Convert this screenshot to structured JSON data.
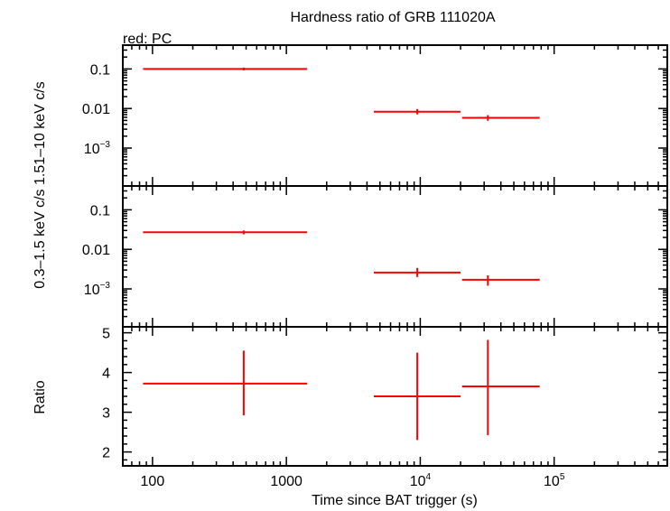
{
  "chart_data": {
    "type": "scatter",
    "title": "Hardness ratio of GRB 111020A",
    "subtitle": "red: PC",
    "xlabel": "Time since BAT trigger (s)",
    "x_scale": "log",
    "xlim": [
      60,
      700000
    ],
    "x_ticks": [
      {
        "v": 100,
        "base": "100",
        "exp": ""
      },
      {
        "v": 1000,
        "base": "1000",
        "exp": ""
      },
      {
        "v": 10000,
        "base": "10",
        "exp": "4"
      },
      {
        "v": 100000,
        "base": "10",
        "exp": "5"
      }
    ],
    "color": "#ff0000",
    "panels": [
      {
        "name": "hard",
        "ylabel": "1.51–10 keV c/s",
        "y_scale": "log",
        "ylim": [
          0.00011,
          0.4
        ],
        "y_ticks": [
          {
            "v": 0.1,
            "base": "0.1",
            "exp": ""
          },
          {
            "v": 0.01,
            "base": "0.01",
            "exp": ""
          },
          {
            "v": 0.001,
            "base": "10",
            "exp": "−3"
          }
        ],
        "points": [
          {
            "x": 480,
            "xlo": 85,
            "xhi": 1430,
            "y": 0.1,
            "ylo": 0.092,
            "yhi": 0.108
          },
          {
            "x": 9500,
            "xlo": 4500,
            "xhi": 20000,
            "y": 0.0083,
            "ylo": 0.0071,
            "yhi": 0.0097
          },
          {
            "x": 32000,
            "xlo": 20500,
            "xhi": 78000,
            "y": 0.0058,
            "ylo": 0.0049,
            "yhi": 0.0068
          }
        ]
      },
      {
        "name": "soft",
        "ylabel": "0.3–1.5 keV c/s",
        "y_scale": "log",
        "ylim": [
          0.00011,
          0.4
        ],
        "y_ticks": [
          {
            "v": 0.1,
            "base": "0.1",
            "exp": ""
          },
          {
            "v": 0.01,
            "base": "0.01",
            "exp": ""
          },
          {
            "v": 0.001,
            "base": "10",
            "exp": "−3"
          }
        ],
        "points": [
          {
            "x": 480,
            "xlo": 85,
            "xhi": 1430,
            "y": 0.027,
            "ylo": 0.024,
            "yhi": 0.03
          },
          {
            "x": 9500,
            "xlo": 4500,
            "xhi": 20000,
            "y": 0.0026,
            "ylo": 0.002,
            "yhi": 0.0034
          },
          {
            "x": 32000,
            "xlo": 20500,
            "xhi": 78000,
            "y": 0.0017,
            "ylo": 0.0012,
            "yhi": 0.0022
          }
        ]
      },
      {
        "name": "ratio",
        "ylabel": "Ratio",
        "y_scale": "linear",
        "ylim": [
          1.65,
          5.15
        ],
        "y_ticks": [
          {
            "v": 2,
            "base": "2",
            "exp": ""
          },
          {
            "v": 3,
            "base": "3",
            "exp": ""
          },
          {
            "v": 4,
            "base": "4",
            "exp": ""
          },
          {
            "v": 5,
            "base": "5",
            "exp": ""
          }
        ],
        "points": [
          {
            "x": 480,
            "xlo": 85,
            "xhi": 1430,
            "y": 3.72,
            "ylo": 2.92,
            "yhi": 4.55
          },
          {
            "x": 9500,
            "xlo": 4500,
            "xhi": 20000,
            "y": 3.4,
            "ylo": 2.3,
            "yhi": 4.5
          },
          {
            "x": 32000,
            "xlo": 20500,
            "xhi": 78000,
            "y": 3.65,
            "ylo": 2.42,
            "yhi": 4.82
          }
        ]
      }
    ]
  }
}
